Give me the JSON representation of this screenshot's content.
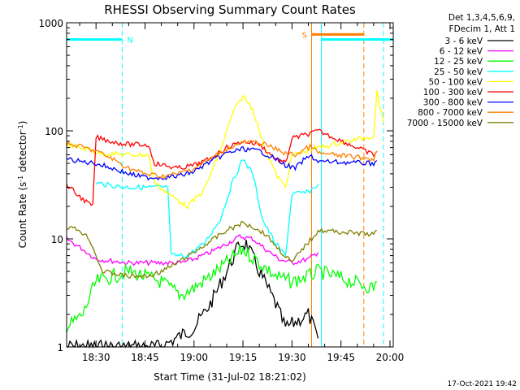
{
  "chart_data": {
    "type": "line",
    "title": "RHESSI Observing Summary Count Rates",
    "xlabel": "Start Time (31-Jul-02 18:21:02)",
    "ylabel_main": "Count Rate (s",
    "ylabel_sup1": "-1",
    "ylabel_mid": " detector",
    "ylabel_sup2": "-1",
    "ylabel_end": ")",
    "yscale": "log",
    "ylim": [
      1,
      1000
    ],
    "xlim": [
      "18:21",
      "20:01"
    ],
    "y_ticks": [
      {
        "value": 1,
        "label": "1"
      },
      {
        "value": 10,
        "label": "10"
      },
      {
        "value": 100,
        "label": "100"
      },
      {
        "value": 1000,
        "label": "1000"
      }
    ],
    "x_ticks": [
      {
        "value": "18:30",
        "label": "18:30"
      },
      {
        "value": "18:45",
        "label": "18:45"
      },
      {
        "value": "19:00",
        "label": "19:00"
      },
      {
        "value": "19:15",
        "label": "19:15"
      },
      {
        "value": "19:30",
        "label": "19:30"
      },
      {
        "value": "19:45",
        "label": "19:45"
      },
      {
        "value": "20:00",
        "label": "20:00"
      }
    ],
    "legend_header": [
      "Det 1,3,4,5,6,9,",
      "FDecim 1, Att 1"
    ],
    "legend_position": "right",
    "series": [
      {
        "name": "3 - 6 keV",
        "color": "#000000",
        "points": [
          [
            "18:21",
            1
          ],
          [
            "18:50",
            1
          ],
          [
            "19:00",
            1.5
          ],
          [
            "19:05",
            2.5
          ],
          [
            "19:10",
            5
          ],
          [
            "19:14",
            9
          ],
          [
            "19:16",
            9
          ],
          [
            "19:20",
            5
          ],
          [
            "19:25",
            2.5
          ],
          [
            "19:28",
            1.5
          ],
          [
            "19:35",
            2
          ],
          [
            "19:38",
            1.2
          ]
        ]
      },
      {
        "name": "6 - 12 keV",
        "color": "#ff00ff",
        "points": [
          [
            "18:21",
            10
          ],
          [
            "18:26",
            8
          ],
          [
            "18:30",
            6.5
          ],
          [
            "18:40",
            6
          ],
          [
            "18:50",
            6
          ],
          [
            "18:56",
            6
          ],
          [
            "19:00",
            6.5
          ],
          [
            "19:05",
            7.5
          ],
          [
            "19:10",
            9
          ],
          [
            "19:14",
            10.5
          ],
          [
            "19:18",
            10
          ],
          [
            "19:22",
            8
          ],
          [
            "19:26",
            6.5
          ],
          [
            "19:30",
            6
          ],
          [
            "19:35",
            6.5
          ],
          [
            "19:38",
            7.5
          ]
        ]
      },
      {
        "name": "12 - 25 keV",
        "color": "#00ff00",
        "points": [
          [
            "18:21",
            1.5
          ],
          [
            "18:26",
            2
          ],
          [
            "18:30",
            4
          ],
          [
            "18:40",
            5
          ],
          [
            "18:50",
            4
          ],
          [
            "18:56",
            3
          ],
          [
            "19:00",
            3.5
          ],
          [
            "19:05",
            4.5
          ],
          [
            "19:10",
            6
          ],
          [
            "19:15",
            8
          ],
          [
            "19:20",
            6
          ],
          [
            "19:25",
            4.5
          ],
          [
            "19:30",
            4
          ],
          [
            "19:35",
            4.5
          ],
          [
            "19:38",
            5
          ],
          [
            "19:55",
            3.5
          ],
          [
            "19:56",
            4
          ]
        ]
      },
      {
        "name": "25 - 50 keV",
        "color": "#00ffff",
        "points": [
          [
            "18:30",
            33
          ],
          [
            "18:35",
            31
          ],
          [
            "18:40",
            30
          ],
          [
            "18:45",
            30
          ],
          [
            "18:52",
            30
          ],
          [
            "18:53",
            7
          ],
          [
            "18:58",
            7
          ],
          [
            "19:03",
            9
          ],
          [
            "19:08",
            15
          ],
          [
            "19:12",
            35
          ],
          [
            "19:15",
            55
          ],
          [
            "19:18",
            40
          ],
          [
            "19:21",
            15
          ],
          [
            "19:25",
            9
          ],
          [
            "19:28",
            7
          ],
          [
            "19:30",
            26
          ],
          [
            "19:35",
            27
          ],
          [
            "19:38",
            32
          ]
        ]
      },
      {
        "name": "50 - 100 keV",
        "color": "#ffff00",
        "points": [
          [
            "18:21",
            75
          ],
          [
            "18:25",
            70
          ],
          [
            "18:29",
            65
          ],
          [
            "18:31",
            62
          ],
          [
            "18:40",
            60
          ],
          [
            "18:46",
            60
          ],
          [
            "18:48",
            33
          ],
          [
            "18:53",
            25
          ],
          [
            "18:58",
            20
          ],
          [
            "19:03",
            28
          ],
          [
            "19:08",
            65
          ],
          [
            "19:12",
            150
          ],
          [
            "19:15",
            210
          ],
          [
            "19:18",
            160
          ],
          [
            "19:21",
            80
          ],
          [
            "19:25",
            40
          ],
          [
            "19:28",
            30
          ],
          [
            "19:30",
            60
          ],
          [
            "19:33",
            62
          ],
          [
            "19:36",
            68
          ],
          [
            "19:38",
            70
          ],
          [
            "19:55",
            90
          ],
          [
            "19:56",
            230
          ],
          [
            "19:58",
            120
          ]
        ]
      },
      {
        "name": "100 - 300 keV",
        "color": "#ff0000",
        "points": [
          [
            "18:21",
            32
          ],
          [
            "18:24",
            26
          ],
          [
            "18:27",
            22
          ],
          [
            "18:29",
            20
          ],
          [
            "18:30",
            87
          ],
          [
            "18:36",
            78
          ],
          [
            "18:40",
            75
          ],
          [
            "18:46",
            74
          ],
          [
            "18:48",
            50
          ],
          [
            "18:55",
            45
          ],
          [
            "19:00",
            48
          ],
          [
            "19:05",
            55
          ],
          [
            "19:10",
            70
          ],
          [
            "19:15",
            80
          ],
          [
            "19:20",
            75
          ],
          [
            "19:25",
            55
          ],
          [
            "19:28",
            50
          ],
          [
            "19:30",
            85
          ],
          [
            "19:33",
            90
          ],
          [
            "19:36",
            95
          ],
          [
            "19:38",
            100
          ],
          [
            "19:55",
            60
          ],
          [
            "19:56",
            65
          ]
        ]
      },
      {
        "name": "300 - 800 keV",
        "color": "#0000ff",
        "points": [
          [
            "18:21",
            55
          ],
          [
            "18:25",
            52
          ],
          [
            "18:30",
            50
          ],
          [
            "18:35",
            45
          ],
          [
            "18:40",
            40
          ],
          [
            "18:45",
            37
          ],
          [
            "18:50",
            37
          ],
          [
            "18:55",
            38
          ],
          [
            "19:00",
            42
          ],
          [
            "19:05",
            52
          ],
          [
            "19:10",
            62
          ],
          [
            "19:15",
            68
          ],
          [
            "19:20",
            65
          ],
          [
            "19:25",
            55
          ],
          [
            "19:28",
            48
          ],
          [
            "19:31",
            45
          ],
          [
            "19:34",
            55
          ],
          [
            "19:36",
            58
          ],
          [
            "19:38",
            52
          ],
          [
            "19:55",
            50
          ],
          [
            "19:56",
            53
          ]
        ]
      },
      {
        "name": "800 - 7000 keV",
        "color": "#ff8000",
        "points": [
          [
            "18:21",
            75
          ],
          [
            "18:25",
            72
          ],
          [
            "18:30",
            65
          ],
          [
            "18:35",
            55
          ],
          [
            "18:40",
            45
          ],
          [
            "18:45",
            40
          ],
          [
            "18:50",
            38
          ],
          [
            "18:55",
            40
          ],
          [
            "19:00",
            45
          ],
          [
            "19:05",
            55
          ],
          [
            "19:10",
            68
          ],
          [
            "19:15",
            78
          ],
          [
            "19:20",
            78
          ],
          [
            "19:25",
            68
          ],
          [
            "19:28",
            62
          ],
          [
            "19:31",
            60
          ],
          [
            "19:34",
            68
          ],
          [
            "19:36",
            72
          ],
          [
            "19:38",
            62
          ],
          [
            "19:55",
            55
          ],
          [
            "19:56",
            65
          ]
        ]
      },
      {
        "name": "7000 - 15000 keV",
        "color": "#808000",
        "points": [
          [
            "18:21",
            13
          ],
          [
            "18:25",
            12
          ],
          [
            "18:28",
            10
          ],
          [
            "18:30",
            7
          ],
          [
            "18:32",
            5
          ],
          [
            "18:40",
            4.5
          ],
          [
            "18:46",
            4.5
          ],
          [
            "18:50",
            5
          ],
          [
            "18:55",
            6
          ],
          [
            "19:00",
            7.5
          ],
          [
            "19:05",
            9.5
          ],
          [
            "19:10",
            12
          ],
          [
            "19:15",
            14
          ],
          [
            "19:18",
            13
          ],
          [
            "19:22",
            11
          ],
          [
            "19:26",
            8
          ],
          [
            "19:30",
            6
          ],
          [
            "19:33",
            8
          ],
          [
            "19:36",
            10
          ],
          [
            "19:38",
            12
          ],
          [
            "19:55",
            11
          ],
          [
            "19:56",
            12
          ]
        ]
      }
    ],
    "segments": [
      {
        "name": "N",
        "color": "#00ffff",
        "y": 700,
        "x1": "18:21",
        "x2": "18:38"
      },
      {
        "name": "",
        "color": "#00ffff",
        "y": 700,
        "x1": "19:39",
        "x2": "20:01"
      },
      {
        "name": "S",
        "color": "#ff8000",
        "y": 780,
        "x1": "19:36",
        "x2": "19:52"
      }
    ],
    "vlines": [
      {
        "x": "18:38",
        "color": "#00ffff",
        "style": "dashed"
      },
      {
        "x": "19:39",
        "color": "#00ffff",
        "style": "solid"
      },
      {
        "x": "19:58",
        "color": "#00ffff",
        "style": "dashed"
      },
      {
        "x": "19:36",
        "color": "#ff8000",
        "style": "solid"
      },
      {
        "x": "19:52",
        "color": "#ff8000",
        "style": "dashed"
      }
    ],
    "footer": "17-Oct-2021 19:42"
  }
}
